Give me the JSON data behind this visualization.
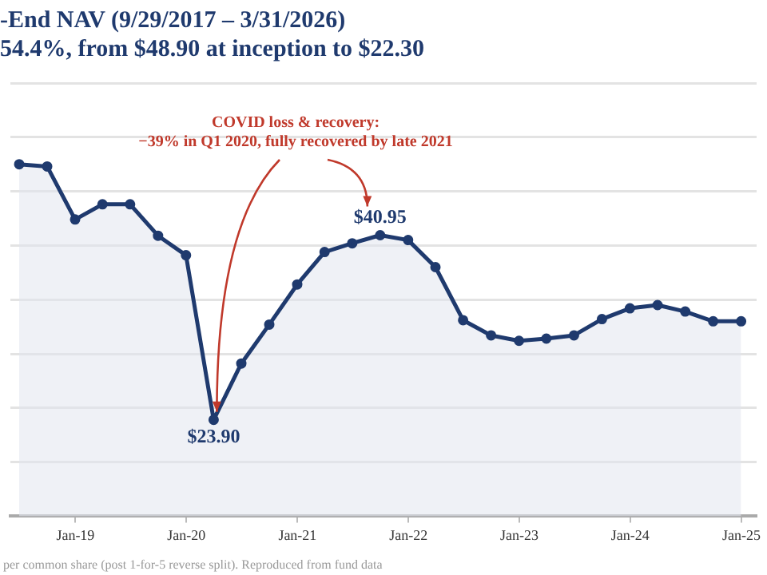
{
  "chart_data": {
    "type": "area",
    "title": "-End NAV (9/29/2017 – 3/31/2026)",
    "subtitle": "54.4%, from $48.90 at inception to $22.30",
    "x": [
      "2018-06-30",
      "2018-09-30",
      "2018-12-31",
      "2019-03-31",
      "2019-06-30",
      "2019-09-30",
      "2019-12-31",
      "2020-03-31",
      "2020-06-30",
      "2020-09-30",
      "2020-12-31",
      "2021-03-31",
      "2021-06-30",
      "2021-09-30",
      "2021-12-31",
      "2022-03-31",
      "2022-06-30",
      "2022-09-30",
      "2022-12-31",
      "2023-03-31",
      "2023-06-30",
      "2023-09-30",
      "2023-12-31",
      "2024-03-31",
      "2024-06-30",
      "2024-09-30",
      "2024-12-31"
    ],
    "series": [
      {
        "color": "#1f3a6e",
        "values": [
          47.5,
          47.3,
          42.4,
          43.8,
          43.8,
          40.9,
          39.1,
          23.9,
          29.1,
          32.7,
          36.4,
          39.4,
          40.2,
          40.95,
          40.5,
          38.0,
          33.1,
          31.7,
          31.2,
          31.4,
          31.7,
          33.2,
          34.2,
          34.5,
          33.9,
          33.0,
          33.0
        ],
        "value_labels": [
          null,
          null,
          null,
          null,
          null,
          null,
          null,
          "$23.90",
          null,
          null,
          null,
          null,
          null,
          "$40.95",
          null,
          null,
          null,
          null,
          null,
          null,
          null,
          null,
          null,
          null,
          null,
          null,
          null
        ]
      }
    ],
    "xlim": [
      "2018-06-01",
      "2025-02-20"
    ],
    "xticks": [
      {
        "value": "2019-01-01",
        "label": "Jan-19"
      },
      {
        "value": "2020-01-01",
        "label": "Jan-20"
      },
      {
        "value": "2021-01-01",
        "label": "Jan-21"
      },
      {
        "value": "2022-01-01",
        "label": "Jan-22"
      },
      {
        "value": "2023-01-01",
        "label": "Jan-23"
      },
      {
        "value": "2024-01-01",
        "label": "Jan-24"
      },
      {
        "value": "2025-01-01",
        "label": "Jan-25"
      }
    ],
    "ylim": [
      15,
      55
    ],
    "yticks": [
      {
        "value": 15,
        "label": null
      },
      {
        "value": 20,
        "label": null
      },
      {
        "value": 25,
        "label": null
      },
      {
        "value": 30,
        "label": null
      },
      {
        "value": 35,
        "label": null
      },
      {
        "value": 40,
        "label": null
      },
      {
        "value": 45,
        "label": null
      },
      {
        "value": 50,
        "label": null
      },
      {
        "value": 55,
        "label": null
      }
    ],
    "tick_labels": "x",
    "grid": "y",
    "marker": "circle",
    "line_style": "solid",
    "annotations": [
      "COVID loss & recovery:\n−39% in Q1 2020, fully recovered by late 2021",
      "per common share (post 1-for-5 reverse split). Reproduced from fund data"
    ]
  }
}
